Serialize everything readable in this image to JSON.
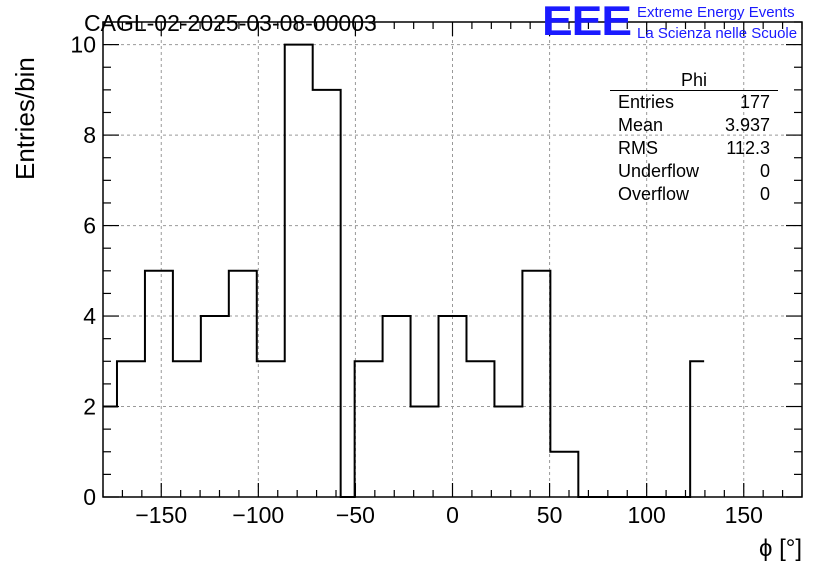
{
  "chart_data": {
    "type": "histogram",
    "title": "CAGL-02-2025-03-08-00003",
    "xlabel": "ϕ [°]",
    "ylabel": "Entries/bin",
    "xlim": [
      -180,
      180
    ],
    "ylim": [
      0,
      10.5
    ],
    "grid": true,
    "bin_width": 7.2,
    "values": [
      2,
      3,
      3,
      5,
      5,
      3,
      3,
      4,
      4,
      5,
      5,
      3,
      3,
      10,
      10,
      9,
      9,
      0,
      3,
      3,
      4,
      4,
      2,
      2,
      4,
      4,
      3,
      3,
      2,
      2,
      5,
      5,
      1,
      1,
      0,
      0,
      0,
      0,
      0,
      0,
      0,
      0,
      3
    ],
    "xticks": [
      -150,
      -100,
      -50,
      0,
      50,
      100,
      150
    ],
    "xtick_labels": [
      "−150",
      "−100",
      "−50",
      "0",
      "50",
      "100",
      "150"
    ],
    "yticks": [
      0,
      2,
      4,
      6,
      8,
      10
    ],
    "ytick_labels": [
      "0",
      "2",
      "4",
      "6",
      "8",
      "10"
    ]
  },
  "stats_box": {
    "name": "Phi",
    "rows": [
      {
        "label": "Entries",
        "value": "177"
      },
      {
        "label": "Mean",
        "value": "3.937"
      },
      {
        "label": "RMS",
        "value": "112.3"
      },
      {
        "label": "Underflow",
        "value": "0"
      },
      {
        "label": "Overflow",
        "value": "0"
      }
    ]
  },
  "logo": {
    "mark": "EEE",
    "line1": "Extreme Energy Events",
    "line2": "La Scienza nelle Scuole"
  },
  "colors": {
    "line": "#000000",
    "grid": "#999999",
    "logo": "#1a1aff"
  }
}
